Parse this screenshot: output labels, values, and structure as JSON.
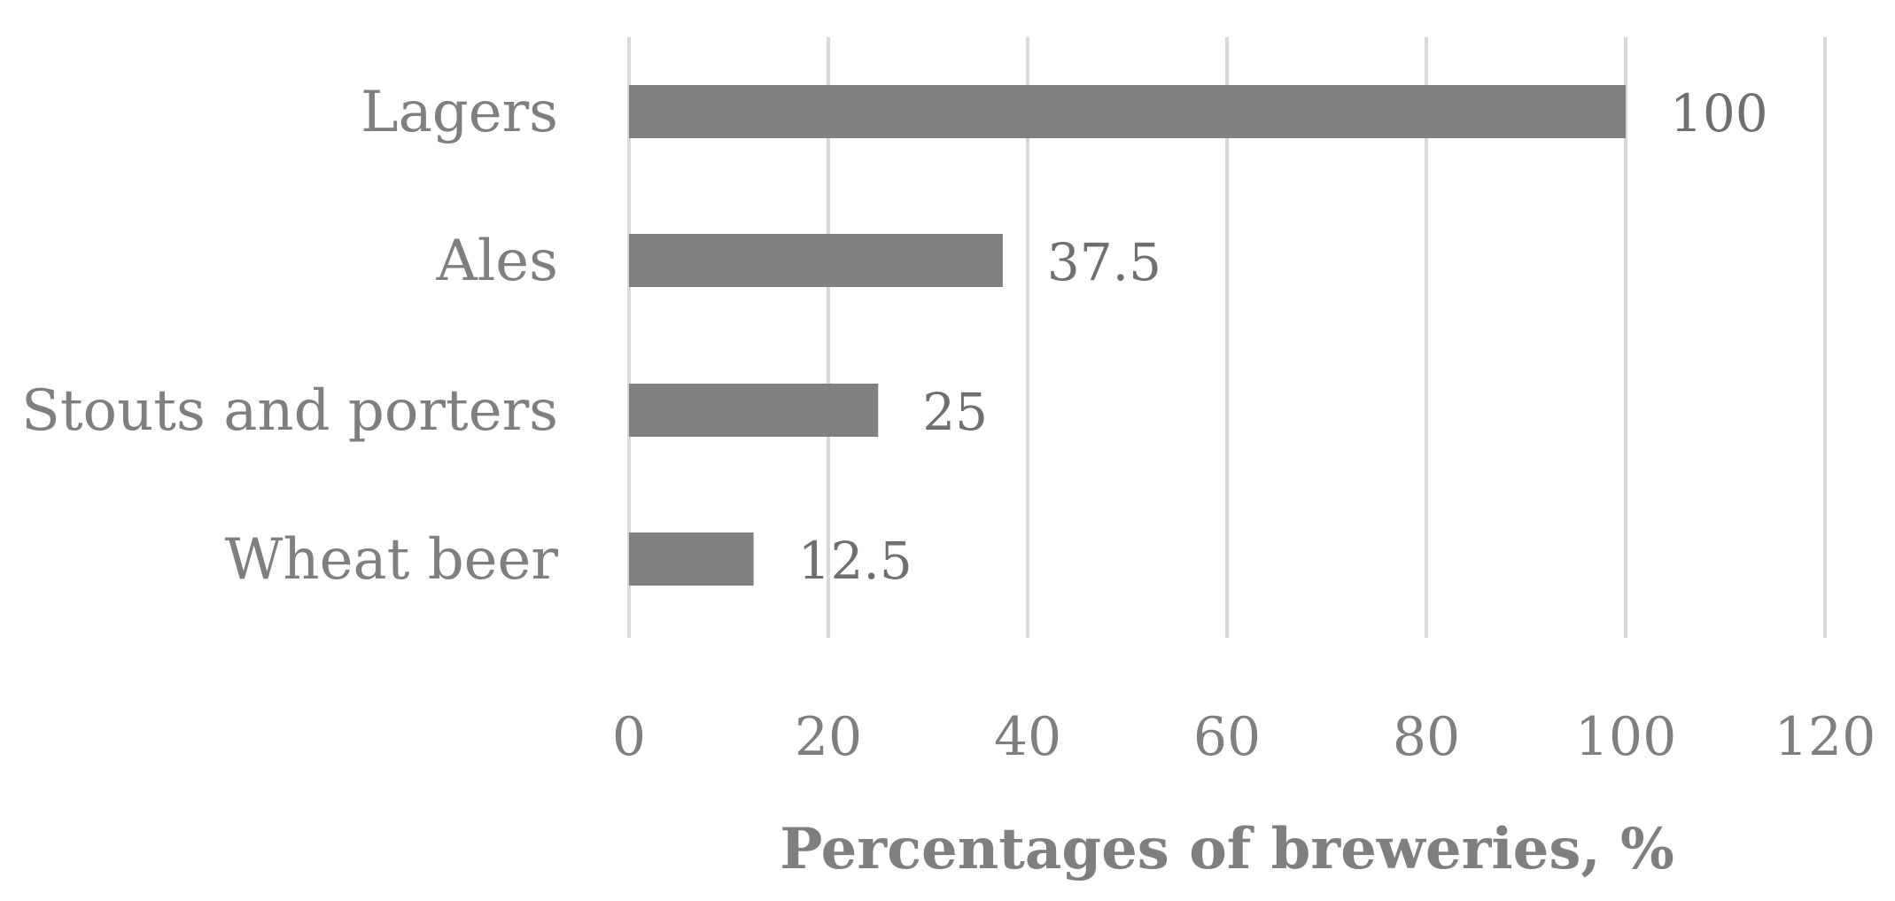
{
  "chart_data": {
    "type": "bar",
    "orientation": "horizontal",
    "title": "",
    "categories": [
      "Lagers",
      "Ales",
      "Stouts and porters",
      "Wheat beer"
    ],
    "values": [
      100,
      37.5,
      25,
      12.5
    ],
    "data_labels": [
      "100",
      "37.5",
      "25",
      "12.5"
    ],
    "xlabel": "Percentages of breweries, %",
    "ylabel": "",
    "xlim": [
      0,
      120
    ],
    "x_ticks": [
      0,
      20,
      40,
      60,
      80,
      100,
      120
    ],
    "grid": true,
    "legend": "none",
    "bar_color": "#808080",
    "grid_color": "#d9d9d9",
    "text_color": "#7f7f7f"
  }
}
